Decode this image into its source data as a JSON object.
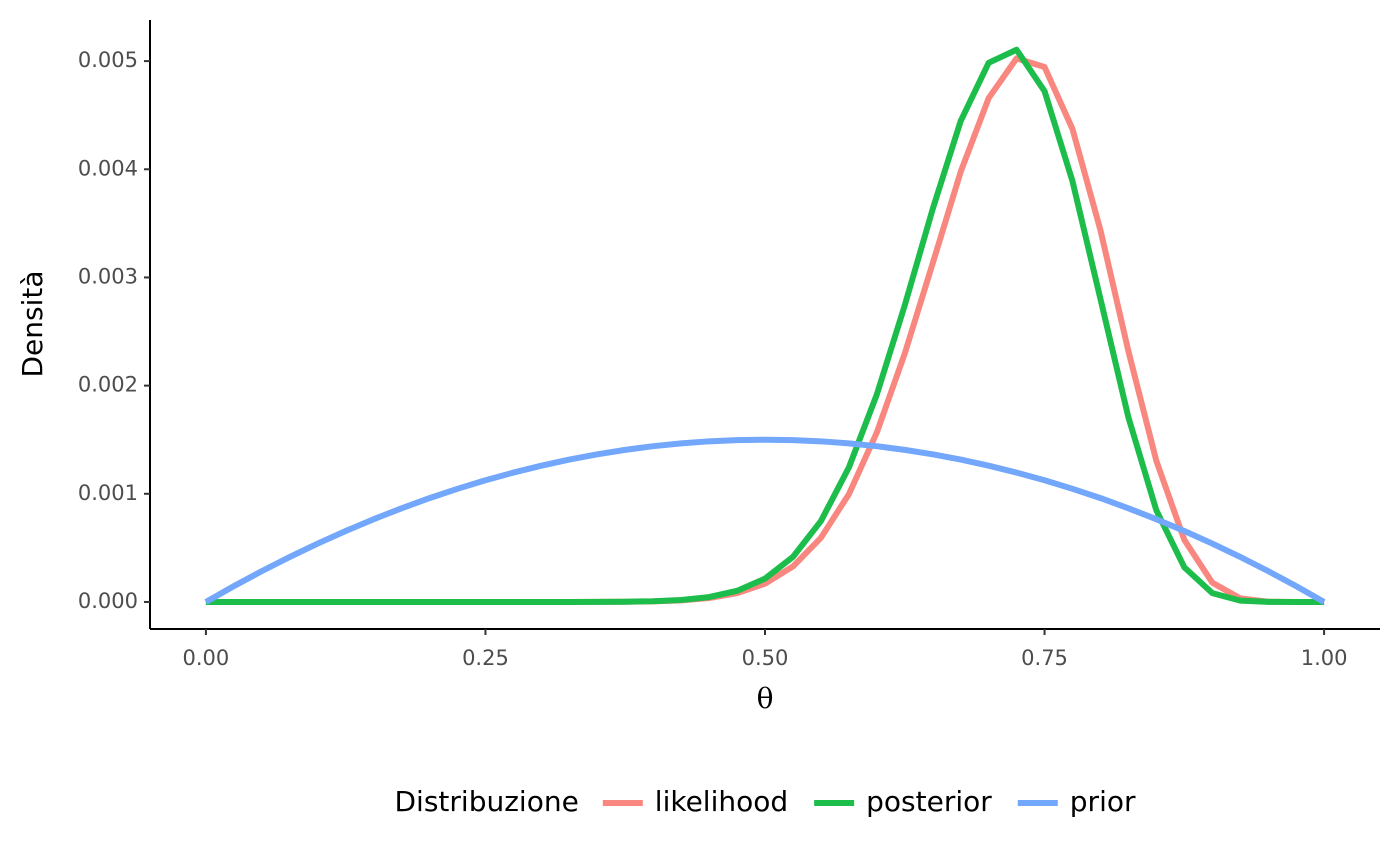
{
  "chart_data": {
    "type": "line",
    "x_label": "θ",
    "y_label": "Densità",
    "legend_title": "Distribuzione",
    "legend_position": "bottom",
    "x": [
      0,
      0.025,
      0.05,
      0.075,
      0.1,
      0.125,
      0.15,
      0.175,
      0.2,
      0.225,
      0.25,
      0.275,
      0.3,
      0.325,
      0.35,
      0.375,
      0.4,
      0.425,
      0.45,
      0.475,
      0.5,
      0.525,
      0.55,
      0.575,
      0.6,
      0.625,
      0.65,
      0.675,
      0.7,
      0.725,
      0.75,
      0.775,
      0.8,
      0.825,
      0.85,
      0.875,
      0.9,
      0.925,
      0.95,
      0.975,
      1
    ],
    "series": [
      {
        "name": "likelihood",
        "color": "#f8877f",
        "values": [
          0,
          0,
          0,
          0,
          0,
          0,
          0,
          0,
          0,
          0,
          0,
          0,
          0,
          0,
          1e-06,
          2e-06,
          5e-06,
          1.5e-05,
          3.6e-05,
          8.1e-05,
          0.000169,
          0.000328,
          0.000593,
          0.000996,
          0.001567,
          0.002297,
          0.003131,
          0.003976,
          0.004657,
          0.005025,
          0.004945,
          0.004372,
          0.003437,
          0.002318,
          0.001304,
          0.000574,
          0.000179,
          3.3e-05,
          2e-06,
          0,
          0
        ]
      },
      {
        "name": "posterior",
        "color": "#1dbd4c",
        "values": [
          0,
          0,
          0,
          0,
          0,
          0,
          0,
          0,
          0,
          0,
          0,
          0,
          0,
          0,
          1e-06,
          2e-06,
          7e-06,
          1.8e-05,
          4.5e-05,
          0.000103,
          0.000216,
          0.000417,
          0.000748,
          0.001243,
          0.001918,
          0.002743,
          0.003633,
          0.004446,
          0.004984,
          0.005105,
          0.004722,
          0.003889,
          0.002801,
          0.001706,
          0.000847,
          0.00032,
          8.2e-05,
          1.2e-05,
          1e-06,
          0,
          0
        ]
      },
      {
        "name": "prior",
        "color": "#72a7fb",
        "values": [
          0,
          0.000146,
          0.000285,
          0.000416,
          0.00054,
          0.000656,
          0.000765,
          0.000866,
          0.00096,
          0.001046,
          0.001125,
          0.001196,
          0.00126,
          0.001316,
          0.001365,
          0.001406,
          0.00144,
          0.001466,
          0.001485,
          0.001496,
          0.0015,
          0.001496,
          0.001485,
          0.001466,
          0.00144,
          0.001406,
          0.001365,
          0.001316,
          0.00126,
          0.001196,
          0.001125,
          0.001046,
          0.00096,
          0.000866,
          0.000765,
          0.000656,
          0.00054,
          0.000416,
          0.000285,
          0.000146,
          0
        ]
      }
    ],
    "xlim": [
      -0.05,
      1.05
    ],
    "ylim": [
      -0.00025,
      0.00538
    ],
    "xticks": [
      {
        "value": 0,
        "label": "0.00"
      },
      0.25,
      {
        "value": 0.5,
        "label": "0.50"
      },
      0.75,
      {
        "value": 1,
        "label": "1.00"
      }
    ],
    "yticks": [
      {
        "value": 0,
        "label": "0.000"
      },
      0.001,
      0.002,
      0.003,
      0.004,
      0.005
    ],
    "grid": false
  }
}
